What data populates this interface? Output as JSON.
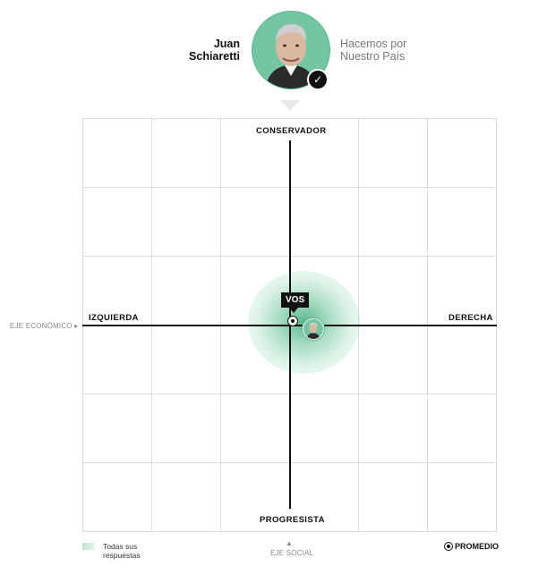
{
  "candidate": {
    "name_line1": "Juan",
    "name_line2": "Schiaretti",
    "party_line1": "Hacemos por",
    "party_line2": "Nuestro País",
    "selected": true
  },
  "axes": {
    "top": "CONSERVADOR",
    "bottom": "PROGRESISTA",
    "left": "IZQUIERDA",
    "right": "DERECHA",
    "economic_axis": "EJE ECONÓMICO ▸",
    "social_axis_arrow": "▲",
    "social_axis": "EJE SOCIAL"
  },
  "markers": {
    "user_label": "VOS"
  },
  "legend": {
    "all_answers_line1": "Todas sus",
    "all_answers_line2": "respuestas",
    "average": "PROMEDIO"
  },
  "colors": {
    "accent_green": "#74c6a2",
    "axis": "#111111",
    "grid": "#dcdcdc"
  }
}
